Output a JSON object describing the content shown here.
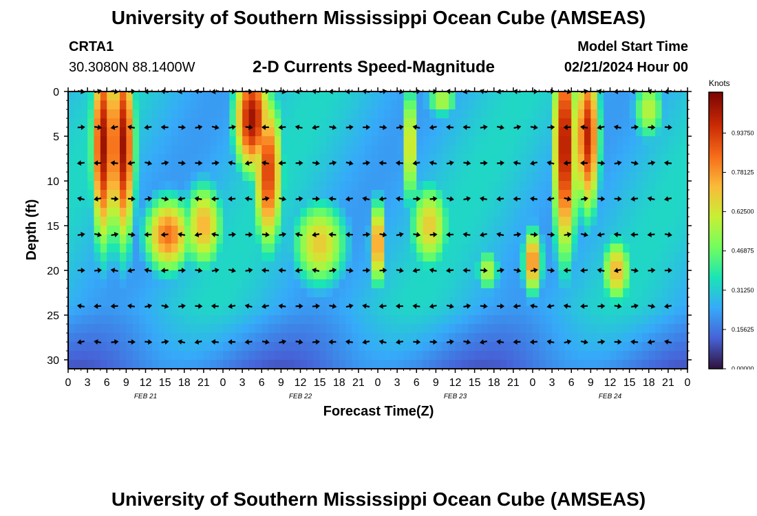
{
  "title": "University of Southern Mississippi Ocean Cube (AMSEAS)",
  "footer_title": "University of Southern Mississippi Ocean Cube (AMSEAS)",
  "station": {
    "id": "CRTA1",
    "location": "30.3080N  88.1400W"
  },
  "model": {
    "label": "Model Start Time",
    "start": "02/21/2024 Hour 00"
  },
  "chart_data": {
    "type": "heatmap",
    "title": "2-D Currents Speed-Magnitude",
    "xlabel": "Forecast Time(Z)",
    "ylabel": "Depth (ft)",
    "ylim": [
      0,
      31
    ],
    "yticks": [
      "0",
      "5",
      "10",
      "15",
      "20",
      "25",
      "30"
    ],
    "xticks": [
      "0",
      "3",
      "6",
      "9",
      "12",
      "15",
      "18",
      "21",
      "0",
      "3",
      "6",
      "9",
      "12",
      "15",
      "18",
      "21",
      "0",
      "3",
      "6",
      "9",
      "12",
      "15",
      "18",
      "21",
      "0",
      "3",
      "6",
      "9",
      "12",
      "15",
      "18",
      "21",
      "0"
    ],
    "date_labels": [
      "FEB 21",
      "FEB 22",
      "FEB 23",
      "FEB 24"
    ],
    "colorbar": {
      "unit": "Knots",
      "range": [
        0,
        1.1
      ],
      "tick_labels": [
        "0.00000",
        "0.15625",
        "0.31250",
        "0.46875",
        "0.62500",
        "0.78125",
        "0.93750"
      ],
      "colors": [
        "#30123b",
        "#4662d7",
        "#36aaf9",
        "#1ae4b6",
        "#72fe5e",
        "#c8ef34",
        "#faba39",
        "#f66b19",
        "#ca2a04",
        "#7a0403"
      ]
    },
    "x_hours": [
      0,
      96
    ],
    "arrow_depths": [
      0,
      4,
      8,
      12,
      16,
      20,
      24,
      28
    ],
    "features": [
      {
        "t": 5.5,
        "d": 6,
        "st": 1.5,
        "sd": 9,
        "v": 1.05
      },
      {
        "t": 8.5,
        "d": 6,
        "st": 1.5,
        "sd": 9,
        "v": 1.05
      },
      {
        "t": 15.5,
        "d": 16,
        "st": 3,
        "sd": 3.5,
        "v": 0.85
      },
      {
        "t": 21,
        "d": 15,
        "st": 2.5,
        "sd": 4,
        "v": 0.75
      },
      {
        "t": 28.5,
        "d": 3,
        "st": 2.2,
        "sd": 5,
        "v": 1.05
      },
      {
        "t": 31,
        "d": 9,
        "st": 1.8,
        "sd": 7,
        "v": 0.95
      },
      {
        "t": 39,
        "d": 17,
        "st": 3.5,
        "sd": 4,
        "v": 0.7
      },
      {
        "t": 48,
        "d": 17,
        "st": 1.0,
        "sd": 4,
        "v": 0.85
      },
      {
        "t": 53,
        "d": 6,
        "st": 1.0,
        "sd": 6,
        "v": 0.7
      },
      {
        "t": 56,
        "d": 15,
        "st": 2.5,
        "sd": 4,
        "v": 0.7
      },
      {
        "t": 58,
        "d": 1,
        "st": 2,
        "sd": 1.5,
        "v": 0.6
      },
      {
        "t": 65,
        "d": 20,
        "st": 1.5,
        "sd": 2,
        "v": 0.6
      },
      {
        "t": 72,
        "d": 19,
        "st": 1.2,
        "sd": 3,
        "v": 0.85
      },
      {
        "t": 77,
        "d": 6,
        "st": 1.5,
        "sd": 10,
        "v": 1.05
      },
      {
        "t": 80.5,
        "d": 5,
        "st": 1.5,
        "sd": 7,
        "v": 1.0
      },
      {
        "t": 85,
        "d": 20,
        "st": 1.8,
        "sd": 3,
        "v": 0.75
      },
      {
        "t": 90,
        "d": 2,
        "st": 2,
        "sd": 3,
        "v": 0.6
      }
    ]
  }
}
